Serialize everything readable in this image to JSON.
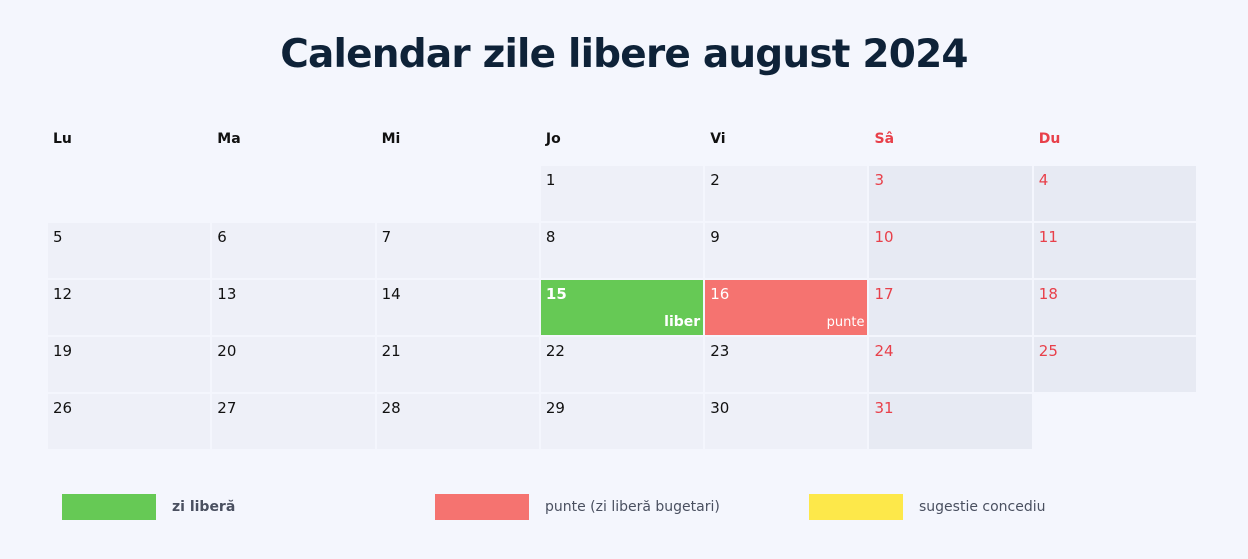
{
  "title": "Calendar zile libere august 2024",
  "weekdays": [
    {
      "label": "Lu",
      "weekend": false
    },
    {
      "label": "Ma",
      "weekend": false
    },
    {
      "label": "Mi",
      "weekend": false
    },
    {
      "label": "Jo",
      "weekend": false
    },
    {
      "label": "Vi",
      "weekend": false
    },
    {
      "label": "Sâ",
      "weekend": true
    },
    {
      "label": "Du",
      "weekend": true
    }
  ],
  "first_weekday_offset": 3,
  "days_in_month": 31,
  "special_days": {
    "15": {
      "type": "holiday",
      "tag": "liber"
    },
    "16": {
      "type": "bridge",
      "tag": "punte"
    }
  },
  "legend": [
    {
      "label": "zi liberă",
      "color": "#66c955",
      "bold": true
    },
    {
      "label": "punte (zi liberă bugetari)",
      "color": "#f57370",
      "bold": false
    },
    {
      "label": "sugestie concediu",
      "color": "#fde84a",
      "bold": false
    }
  ],
  "colors": {
    "weekend_text": "#e8404a",
    "cell_bg": "#eef0f8",
    "weekend_bg": "#e7eaf3"
  }
}
